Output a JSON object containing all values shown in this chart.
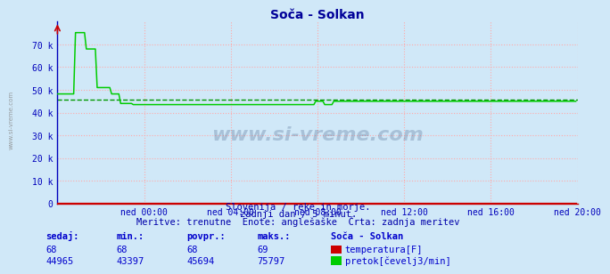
{
  "title": "Soča - Solkan",
  "bg_color": "#d0e8f8",
  "plot_bg_color": "#d0e8f8",
  "grid_color": "#ffaaaa",
  "xlabel_ticks": [
    "ned 00:00",
    "ned 04:00",
    "ned 08:00",
    "ned 12:00",
    "ned 16:00",
    "ned 20:00"
  ],
  "ymax": 80000,
  "ymin": 0,
  "flow_color": "#00cc00",
  "temp_color": "#cc0000",
  "avg_color": "#009900",
  "avg_value": 45694,
  "subtitle1": "Slovenija / reke in morje.",
  "subtitle2": "zadnji dan / 5 minut.",
  "subtitle3": "Meritve: trenutne  Enote: anglešaške  Črta: zadnja meritev",
  "watermark": "www.si-vreme.com",
  "legend_title": "Soča - Solkan",
  "legend_temp": "temperatura[F]",
  "legend_flow": "pretok[čevelj3/min]",
  "label_sedaj": "sedaj:",
  "label_min": "min.:",
  "label_povpr": "povpr.:",
  "label_maks": "maks.:",
  "table_temp": [
    68,
    68,
    68,
    69
  ],
  "table_flow": [
    44965,
    43397,
    45694,
    75797
  ],
  "title_color": "#000099",
  "axis_color": "#0000bb",
  "text_color": "#0000aa",
  "table_color": "#0000cc",
  "sidebar_text": "www.si-vreme.com",
  "sidebar_color": "#888888"
}
